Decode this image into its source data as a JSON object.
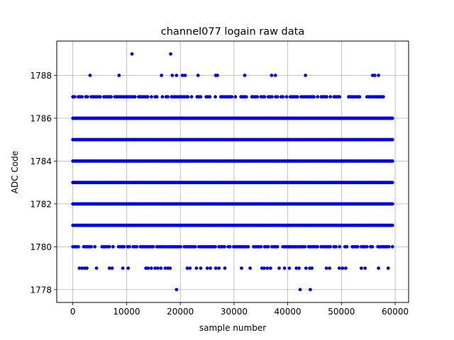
{
  "chart_data": {
    "type": "scatter",
    "title": "channel077 logain raw data",
    "xlabel": "sample number",
    "ylabel": "ADC Code",
    "xlim": [
      -3000,
      62500
    ],
    "ylim": [
      1777.4,
      1789.6
    ],
    "xticks": [
      0,
      10000,
      20000,
      30000,
      40000,
      50000,
      60000
    ],
    "xtick_labels": [
      "0",
      "10000",
      "20000",
      "30000",
      "40000",
      "50000",
      "60000"
    ],
    "yticks": [
      1778,
      1780,
      1782,
      1784,
      1786,
      1788
    ],
    "ytick_labels": [
      "1778",
      "1780",
      "1782",
      "1784",
      "1786",
      "1788"
    ],
    "grid": true,
    "marker_color": "#0000ff",
    "x_range_of_samples": [
      0,
      59500
    ],
    "dense_levels": [
      1780,
      1781,
      1782,
      1783,
      1784,
      1785,
      1786
    ],
    "semi_dense_levels": [
      {
        "y": 1787,
        "start": 0,
        "end": 59000,
        "density": 0.55
      },
      {
        "y": 1780,
        "start": 0,
        "end": 59500,
        "density": 0.62
      }
    ],
    "sparse_points": [
      {
        "x": 11000,
        "y": 1789
      },
      {
        "x": 18200,
        "y": 1789
      },
      {
        "x": 3200,
        "y": 1788
      },
      {
        "x": 8600,
        "y": 1788
      },
      {
        "x": 16500,
        "y": 1788
      },
      {
        "x": 18500,
        "y": 1788
      },
      {
        "x": 19300,
        "y": 1788
      },
      {
        "x": 20400,
        "y": 1788
      },
      {
        "x": 20900,
        "y": 1788
      },
      {
        "x": 23300,
        "y": 1788
      },
      {
        "x": 26600,
        "y": 1788
      },
      {
        "x": 26900,
        "y": 1788
      },
      {
        "x": 32000,
        "y": 1788
      },
      {
        "x": 37000,
        "y": 1788
      },
      {
        "x": 37700,
        "y": 1788
      },
      {
        "x": 43300,
        "y": 1788
      },
      {
        "x": 55800,
        "y": 1788
      },
      {
        "x": 56200,
        "y": 1788
      },
      {
        "x": 56900,
        "y": 1788
      },
      {
        "x": 1200,
        "y": 1779
      },
      {
        "x": 1700,
        "y": 1779
      },
      {
        "x": 2200,
        "y": 1779
      },
      {
        "x": 2600,
        "y": 1779
      },
      {
        "x": 4400,
        "y": 1779
      },
      {
        "x": 6800,
        "y": 1779
      },
      {
        "x": 7300,
        "y": 1779
      },
      {
        "x": 9300,
        "y": 1779
      },
      {
        "x": 10300,
        "y": 1779
      },
      {
        "x": 13600,
        "y": 1779
      },
      {
        "x": 14000,
        "y": 1779
      },
      {
        "x": 14600,
        "y": 1779
      },
      {
        "x": 15300,
        "y": 1779
      },
      {
        "x": 15800,
        "y": 1779
      },
      {
        "x": 16400,
        "y": 1779
      },
      {
        "x": 17200,
        "y": 1779
      },
      {
        "x": 17700,
        "y": 1779
      },
      {
        "x": 18100,
        "y": 1779
      },
      {
        "x": 21300,
        "y": 1779
      },
      {
        "x": 21800,
        "y": 1779
      },
      {
        "x": 23000,
        "y": 1779
      },
      {
        "x": 23800,
        "y": 1779
      },
      {
        "x": 25000,
        "y": 1779
      },
      {
        "x": 25600,
        "y": 1779
      },
      {
        "x": 26600,
        "y": 1779
      },
      {
        "x": 27200,
        "y": 1779
      },
      {
        "x": 28300,
        "y": 1779
      },
      {
        "x": 31400,
        "y": 1779
      },
      {
        "x": 33000,
        "y": 1779
      },
      {
        "x": 35200,
        "y": 1779
      },
      {
        "x": 35600,
        "y": 1779
      },
      {
        "x": 36200,
        "y": 1779
      },
      {
        "x": 36800,
        "y": 1779
      },
      {
        "x": 38400,
        "y": 1779
      },
      {
        "x": 39400,
        "y": 1779
      },
      {
        "x": 40300,
        "y": 1779
      },
      {
        "x": 41600,
        "y": 1779
      },
      {
        "x": 42100,
        "y": 1779
      },
      {
        "x": 43400,
        "y": 1779
      },
      {
        "x": 44100,
        "y": 1779
      },
      {
        "x": 44500,
        "y": 1779
      },
      {
        "x": 47200,
        "y": 1779
      },
      {
        "x": 47800,
        "y": 1779
      },
      {
        "x": 49600,
        "y": 1779
      },
      {
        "x": 50200,
        "y": 1779
      },
      {
        "x": 50800,
        "y": 1779
      },
      {
        "x": 53700,
        "y": 1779
      },
      {
        "x": 54400,
        "y": 1779
      },
      {
        "x": 56900,
        "y": 1779
      },
      {
        "x": 58700,
        "y": 1779
      },
      {
        "x": 19300,
        "y": 1778
      },
      {
        "x": 42300,
        "y": 1778
      },
      {
        "x": 44200,
        "y": 1778
      }
    ]
  }
}
